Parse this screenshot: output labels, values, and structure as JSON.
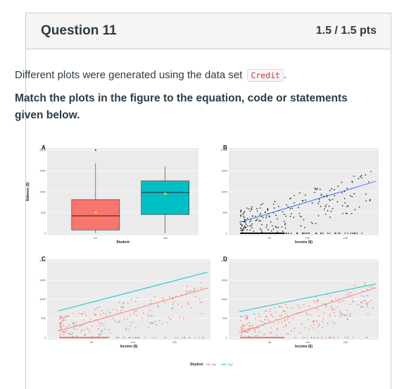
{
  "question": {
    "title": "Question 11",
    "points": "1.5 / 1.5 pts",
    "text_before": "Different plots were generated using the data set ",
    "code": "Credit",
    "text_after": ".",
    "instruction": "Match the plots in the figure to the equation, code or statements given below."
  },
  "figure": {
    "panels": [
      "A",
      "B",
      "C",
      "D"
    ],
    "y_label": "Balance ($)",
    "x_label_student": "Student",
    "x_label_income": "Income ($)",
    "categories": [
      "No",
      "Yes"
    ],
    "y_ticks": [
      "0",
      "500",
      "1000",
      "1500",
      "2000"
    ],
    "x_ticks": [
      "50",
      "100",
      "150"
    ],
    "legend_title": "Student",
    "legend_items": [
      "No",
      "Yes"
    ],
    "colors": {
      "no": "#f8766d",
      "yes": "#00bfc4",
      "mean": "#ffd700",
      "grid": "#ebebeb",
      "panel_bg": "#ebebeb",
      "fit": "#3366ff"
    }
  },
  "chart_data": [
    {
      "type": "box",
      "panel": "A",
      "categories": [
        "No",
        "Yes"
      ],
      "median": [
        420,
        980
      ],
      "q1": [
        80,
        450
      ],
      "q3": [
        810,
        1260
      ],
      "lower": [
        0,
        0
      ],
      "upper": [
        1680,
        1610
      ],
      "mean": [
        500,
        950
      ],
      "ylim": [
        0,
        2000
      ],
      "xlabel": "Student",
      "ylabel": "Balance ($)"
    },
    {
      "type": "scatter",
      "panel": "B",
      "fit": [
        [
          10,
          260
        ],
        [
          190,
          1250
        ]
      ],
      "xlim": [
        0,
        190
      ],
      "ylim": [
        0,
        2000
      ],
      "xlabel": "Income ($)"
    },
    {
      "type": "scatter",
      "panel": "C",
      "series": [
        {
          "name": "No",
          "fit": [
            [
              10,
              170
            ],
            [
              190,
              1300
            ]
          ]
        },
        {
          "name": "Yes",
          "fit": [
            [
              10,
              700
            ],
            [
              190,
              1720
            ]
          ]
        }
      ],
      "xlim": [
        0,
        190
      ],
      "ylim": [
        0,
        2000
      ],
      "xlabel": "Income ($)"
    },
    {
      "type": "scatter",
      "panel": "D",
      "series": [
        {
          "name": "No",
          "fit": [
            [
              10,
              130
            ],
            [
              190,
              1310
            ]
          ]
        },
        {
          "name": "Yes",
          "fit": [
            [
              10,
              680
            ],
            [
              190,
              1410
            ]
          ]
        }
      ],
      "xlim": [
        0,
        190
      ],
      "ylim": [
        0,
        2000
      ],
      "xlabel": "Income ($)"
    }
  ]
}
